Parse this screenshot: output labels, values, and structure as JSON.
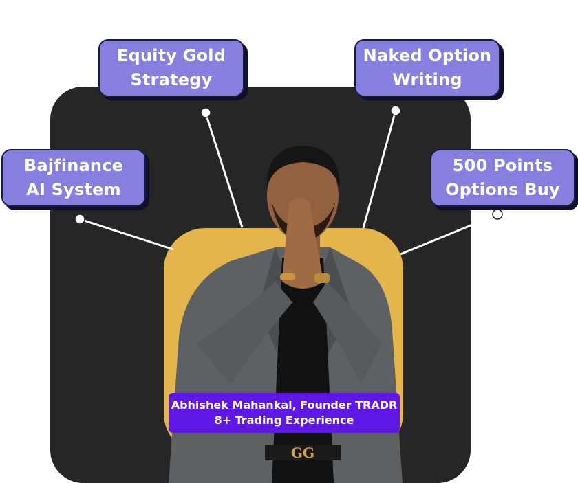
{
  "labels": {
    "equity_gold": [
      "Equity Gold",
      "Strategy"
    ],
    "naked_option": [
      "Naked Option",
      "Writing"
    ],
    "bajfinance": [
      "Bajfinance",
      "AI System"
    ],
    "points_buy": [
      "500 Points",
      "Options Buy"
    ]
  },
  "founder": {
    "line1": "Abhishek Mahankal, Founder TRADR",
    "line2": "8+ Trading Experience"
  },
  "colors": {
    "dark_card": "#262626",
    "gold_card": "#e3b54c",
    "label_box": "#8580e0",
    "badge": "#5f17e6",
    "suit": "#5e6163"
  },
  "image": {
    "subject": "man in grey suit with hands pressed together",
    "buckle_text": "GG"
  }
}
